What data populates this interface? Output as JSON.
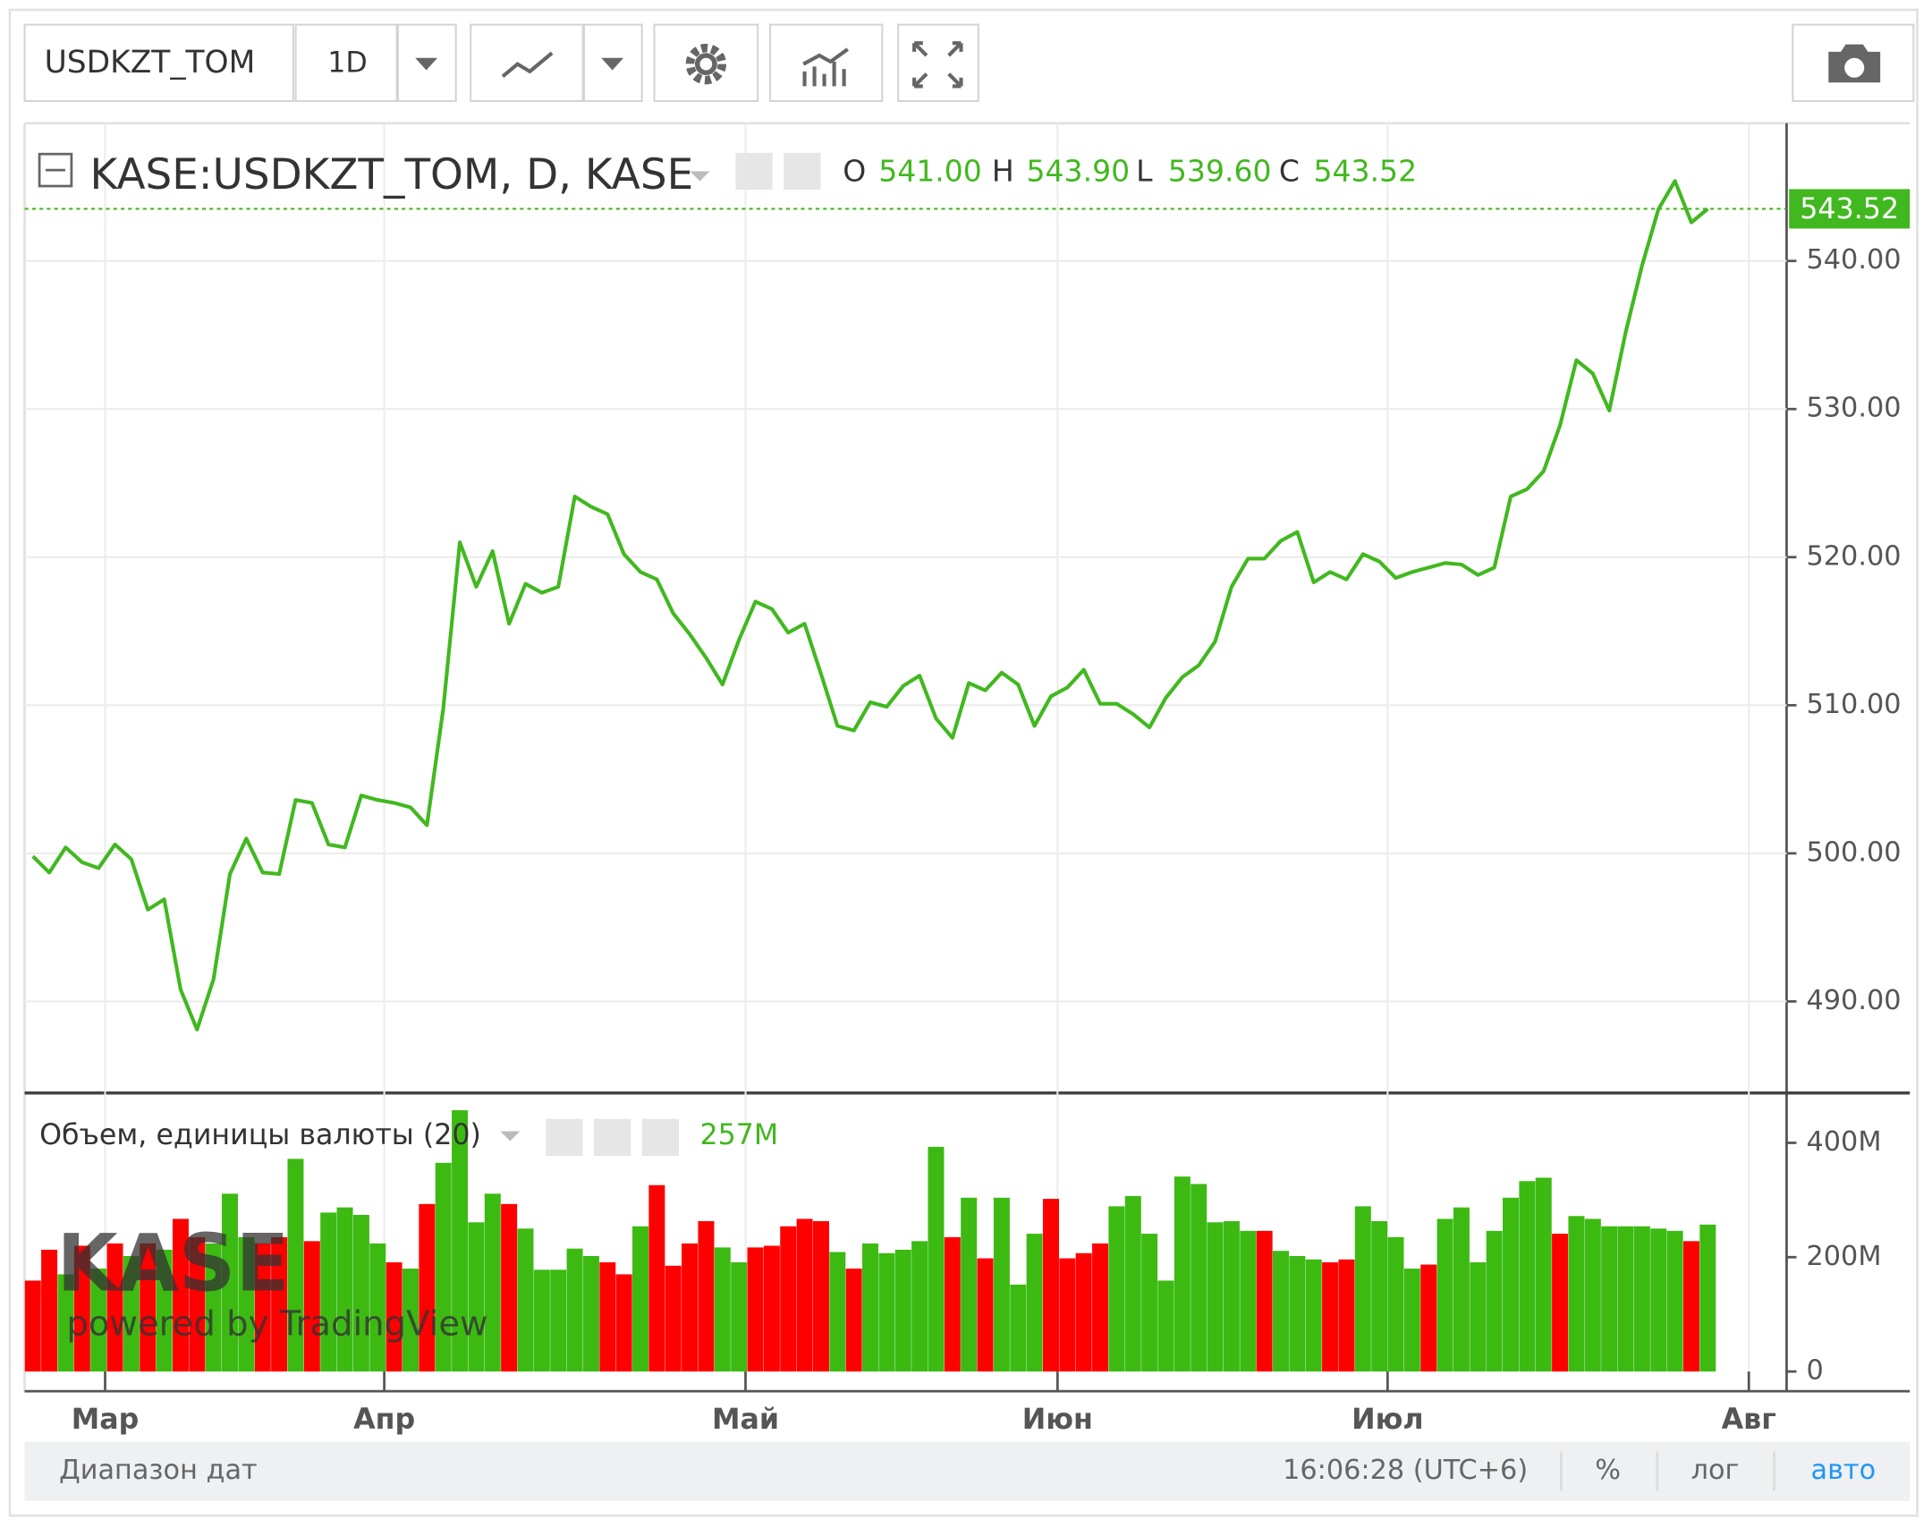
{
  "toolbar": {
    "symbol": "USDKZT_TOM",
    "interval": "1D"
  },
  "legend": {
    "title": "KASE:USDKZT_TOM, D, KASE",
    "o_label": "O",
    "o": "541.00",
    "h_label": "H",
    "h": "543.90",
    "l_label": "L",
    "l": "539.60",
    "c_label": "C",
    "c": "543.52"
  },
  "watermark": {
    "logo": "KASE",
    "powered": "powered by TradingView"
  },
  "chart_data": [
    {
      "type": "line",
      "color": "#41b81f",
      "last_label": "543.52",
      "values": [
        499.8,
        498.7,
        500.4,
        499.4,
        499.0,
        500.6,
        499.6,
        496.2,
        496.9,
        490.8,
        488.1,
        491.5,
        498.6,
        501.0,
        498.7,
        498.6,
        503.6,
        503.4,
        500.6,
        500.4,
        503.9,
        503.6,
        503.4,
        503.1,
        501.9,
        509.8,
        521.0,
        518.0,
        520.4,
        515.5,
        518.2,
        517.6,
        518.0,
        524.1,
        523.4,
        522.9,
        520.2,
        519.0,
        518.5,
        516.2,
        514.8,
        513.2,
        511.4,
        514.4,
        517.0,
        516.5,
        514.9,
        515.5,
        512.1,
        508.6,
        508.3,
        510.2,
        509.9,
        511.3,
        512.0,
        509.1,
        507.8,
        511.5,
        511.0,
        512.2,
        511.4,
        508.6,
        510.6,
        511.2,
        512.4,
        510.1,
        510.1,
        509.4,
        508.5,
        510.5,
        511.9,
        512.7,
        514.3,
        518.0,
        519.9,
        519.9,
        521.1,
        521.7,
        518.3,
        519.0,
        518.5,
        520.2,
        519.7,
        518.6,
        519.0,
        519.3,
        519.6,
        519.5,
        518.8,
        519.3,
        524.1,
        524.6,
        525.8,
        528.9,
        533.3,
        532.4,
        529.9,
        535.2,
        539.7,
        543.5,
        545.4,
        542.6,
        543.52
      ],
      "xlim": [
        -0.5,
        106.8
      ],
      "ylim": [
        483.9,
        549.3
      ],
      "yticks": [
        {
          "value": 490,
          "label": "490.00"
        },
        {
          "value": 500,
          "label": "500.00"
        },
        {
          "value": 510,
          "label": "510.00"
        },
        {
          "value": 520,
          "label": "520.00"
        },
        {
          "value": 530,
          "label": "530.00"
        },
        {
          "value": 540,
          "label": "540.00"
        }
      ],
      "grid": true
    },
    {
      "type": "bar",
      "title": "Объем, единицы валюты (20)",
      "legend_value": "257M",
      "values": [
        159,
        213,
        170,
        220,
        180,
        224,
        202,
        224,
        213,
        267,
        235,
        224,
        311,
        235,
        224,
        235,
        372,
        228,
        278,
        287,
        274,
        224,
        191,
        180,
        293,
        365,
        457,
        261,
        311,
        293,
        250,
        178,
        178,
        215,
        202,
        191,
        170,
        254,
        326,
        185,
        224,
        263,
        217,
        191,
        217,
        220,
        254,
        267,
        263,
        209,
        180,
        224,
        207,
        213,
        228,
        393,
        235,
        304,
        198,
        304,
        152,
        241,
        302,
        198,
        207,
        224,
        289,
        307,
        241,
        159,
        341,
        328,
        261,
        263,
        246,
        246,
        211,
        202,
        196,
        191,
        196,
        289,
        263,
        235,
        180,
        187,
        267,
        287,
        191,
        246,
        304,
        333,
        339,
        241,
        272,
        267,
        254,
        254,
        254,
        250,
        246,
        228,
        257
      ],
      "colors": [
        "#ff0000",
        "#ff0000",
        "#3cba12",
        "#ff0000",
        "#3cba12",
        "#ff0000",
        "#3cba12",
        "#ff0000",
        "#3cba12",
        "#ff0000",
        "#ff0000",
        "#3cba12",
        "#3cba12",
        "#3cba12",
        "#ff0000",
        "#ff0000",
        "#3cba12",
        "#ff0000",
        "#3cba12",
        "#3cba12",
        "#3cba12",
        "#3cba12",
        "#ff0000",
        "#3cba12",
        "#ff0000",
        "#3cba12",
        "#3cba12",
        "#3cba12",
        "#3cba12",
        "#ff0000",
        "#3cba12",
        "#3cba12",
        "#3cba12",
        "#3cba12",
        "#3cba12",
        "#ff0000",
        "#ff0000",
        "#3cba12",
        "#ff0000",
        "#ff0000",
        "#ff0000",
        "#ff0000",
        "#3cba12",
        "#3cba12",
        "#ff0000",
        "#ff0000",
        "#ff0000",
        "#ff0000",
        "#ff0000",
        "#3cba12",
        "#ff0000",
        "#3cba12",
        "#3cba12",
        "#3cba12",
        "#3cba12",
        "#3cba12",
        "#ff0000",
        "#3cba12",
        "#ff0000",
        "#3cba12",
        "#3cba12",
        "#3cba12",
        "#ff0000",
        "#ff0000",
        "#ff0000",
        "#ff0000",
        "#3cba12",
        "#3cba12",
        "#3cba12",
        "#3cba12",
        "#3cba12",
        "#3cba12",
        "#3cba12",
        "#3cba12",
        "#3cba12",
        "#ff0000",
        "#3cba12",
        "#3cba12",
        "#3cba12",
        "#ff0000",
        "#ff0000",
        "#3cba12",
        "#3cba12",
        "#3cba12",
        "#3cba12",
        "#ff0000",
        "#3cba12",
        "#3cba12",
        "#3cba12",
        "#3cba12",
        "#3cba12",
        "#3cba12",
        "#3cba12",
        "#ff0000",
        "#3cba12",
        "#3cba12",
        "#3cba12",
        "#3cba12",
        "#3cba12",
        "#3cba12",
        "#3cba12",
        "#ff0000",
        "#3cba12"
      ],
      "xlim": [
        -0.5,
        106.8
      ],
      "ylim": [
        0,
        485
      ],
      "yticks": [
        0,
        {
          "value": 200,
          "label": "200M"
        },
        {
          "value": 400,
          "label": "400M"
        }
      ],
      "xticks": [
        {
          "value": 4.4,
          "label": "Мар"
        },
        {
          "value": 21.4,
          "label": "Апр"
        },
        {
          "value": 43.4,
          "label": "Май"
        },
        {
          "value": 62.4,
          "label": "Июн"
        },
        {
          "value": 82.5,
          "label": "Июл"
        },
        {
          "value": 104.5,
          "label": "Авг"
        }
      ]
    }
  ],
  "footer": {
    "range": "Диапазон дат",
    "time": "16:06:28 (UTC+6)",
    "percent": "%",
    "log": "лог",
    "auto": "авто"
  }
}
